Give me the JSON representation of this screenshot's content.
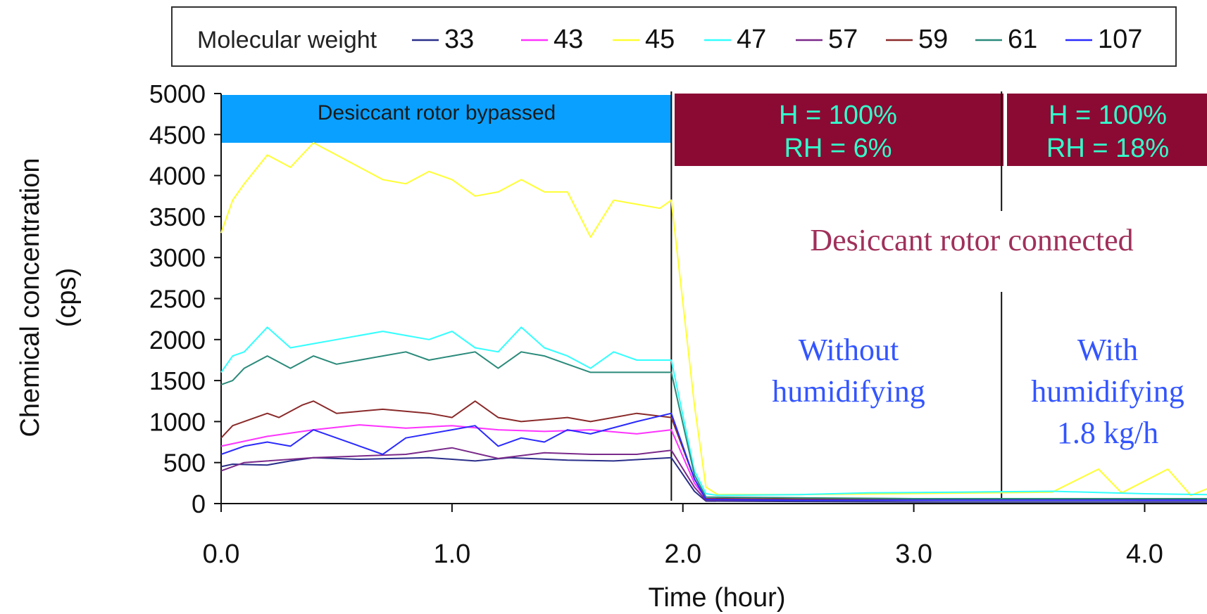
{
  "chart_data": {
    "type": "line",
    "xlabel": "Time (hour)",
    "ylabel": [
      "Chemical concentration",
      "(cps)"
    ],
    "xlim": [
      0,
      4.27
    ],
    "ylim": [
      0,
      5000
    ],
    "x_ticks": [
      0,
      1,
      2,
      3,
      4
    ],
    "x_tick_labels": [
      "0.0",
      "1.0",
      "2.0",
      "3.0",
      "4.0"
    ],
    "y_ticks": [
      0,
      500,
      1000,
      1500,
      2000,
      2500,
      3000,
      3500,
      4000,
      4500,
      5000
    ],
    "y_tick_labels": [
      "0",
      "500",
      "1000",
      "1500",
      "2000",
      "2500",
      "3000",
      "3500",
      "4000",
      "4500",
      "5000"
    ],
    "legend": {
      "title": "Molecular weight",
      "placement": "top"
    },
    "series": [
      {
        "name": "33",
        "color": "#2a2f8a",
        "x": [
          0.0,
          0.05,
          0.2,
          0.3,
          0.4,
          0.6,
          0.9,
          1.1,
          1.25,
          1.5,
          1.7,
          1.95,
          2.05,
          2.1,
          2.5,
          3.0,
          3.5,
          4.0,
          4.27
        ],
        "y": [
          450,
          480,
          470,
          520,
          560,
          540,
          560,
          520,
          560,
          530,
          520,
          560,
          150,
          30,
          25,
          20,
          20,
          20,
          20
        ]
      },
      {
        "name": "43",
        "color": "#ff33ff",
        "x": [
          0.0,
          0.1,
          0.2,
          0.4,
          0.6,
          0.8,
          1.0,
          1.2,
          1.4,
          1.6,
          1.8,
          1.95,
          2.05,
          2.1,
          2.5,
          3.0,
          3.5,
          4.0,
          4.27
        ],
        "y": [
          700,
          760,
          820,
          900,
          960,
          920,
          950,
          900,
          880,
          900,
          850,
          900,
          250,
          60,
          50,
          45,
          50,
          45,
          50
        ]
      },
      {
        "name": "45",
        "color": "#ffff33",
        "x": [
          0.0,
          0.05,
          0.1,
          0.2,
          0.3,
          0.4,
          0.5,
          0.7,
          0.8,
          0.9,
          1.0,
          1.1,
          1.2,
          1.3,
          1.4,
          1.5,
          1.6,
          1.7,
          1.8,
          1.9,
          1.95,
          2.05,
          2.1,
          2.15,
          2.5,
          2.9,
          3.3,
          3.6,
          3.8,
          3.9,
          4.1,
          4.2,
          4.27
        ],
        "y": [
          3300,
          3700,
          3900,
          4250,
          4100,
          4400,
          4250,
          3950,
          3900,
          4050,
          3950,
          3750,
          3800,
          3950,
          3800,
          3800,
          3250,
          3700,
          3650,
          3600,
          3700,
          1200,
          200,
          110,
          110,
          120,
          130,
          140,
          420,
          130,
          420,
          100,
          180
        ]
      },
      {
        "name": "47",
        "color": "#33ffff",
        "x": [
          0.0,
          0.05,
          0.1,
          0.2,
          0.3,
          0.4,
          0.5,
          0.7,
          0.8,
          0.9,
          1.0,
          1.1,
          1.2,
          1.3,
          1.4,
          1.5,
          1.6,
          1.7,
          1.8,
          1.95,
          2.05,
          2.1,
          2.15,
          2.5,
          2.8,
          3.2,
          3.6,
          4.0,
          4.27
        ],
        "y": [
          1600,
          1800,
          1850,
          2150,
          1900,
          1950,
          2000,
          2100,
          2050,
          2000,
          2100,
          1900,
          1850,
          2150,
          1900,
          1800,
          1650,
          1850,
          1750,
          1750,
          400,
          120,
          100,
          110,
          130,
          140,
          150,
          120,
          110
        ]
      },
      {
        "name": "57",
        "color": "#7a2a8a",
        "x": [
          0.0,
          0.1,
          0.2,
          0.4,
          0.6,
          0.8,
          1.0,
          1.2,
          1.4,
          1.6,
          1.8,
          1.95,
          2.05,
          2.1,
          2.5,
          3.0,
          3.5,
          4.0,
          4.27
        ],
        "y": [
          400,
          500,
          520,
          560,
          580,
          600,
          680,
          550,
          620,
          600,
          600,
          650,
          200,
          40,
          40,
          40,
          50,
          40,
          40
        ]
      },
      {
        "name": "59",
        "color": "#8a2a2a",
        "x": [
          0.0,
          0.05,
          0.2,
          0.25,
          0.35,
          0.4,
          0.5,
          0.7,
          0.9,
          1.0,
          1.1,
          1.2,
          1.3,
          1.5,
          1.6,
          1.8,
          1.95,
          2.05,
          2.1,
          2.5,
          3.0,
          3.5,
          4.0,
          4.27
        ],
        "y": [
          800,
          950,
          1100,
          1050,
          1200,
          1250,
          1100,
          1150,
          1100,
          1050,
          1250,
          1050,
          1000,
          1050,
          1000,
          1100,
          1050,
          300,
          60,
          55,
          50,
          55,
          50,
          50
        ]
      },
      {
        "name": "61",
        "color": "#2a8a7a",
        "x": [
          0.0,
          0.05,
          0.1,
          0.2,
          0.3,
          0.4,
          0.5,
          0.7,
          0.8,
          0.9,
          1.0,
          1.1,
          1.2,
          1.3,
          1.4,
          1.5,
          1.6,
          1.8,
          1.95,
          2.05,
          2.1,
          2.5,
          3.0,
          3.5,
          4.0,
          4.27
        ],
        "y": [
          1450,
          1500,
          1650,
          1800,
          1650,
          1800,
          1700,
          1800,
          1850,
          1750,
          1800,
          1850,
          1650,
          1850,
          1800,
          1700,
          1600,
          1600,
          1600,
          350,
          80,
          70,
          60,
          60,
          60,
          60
        ]
      },
      {
        "name": "107",
        "color": "#2a2aff",
        "x": [
          0.0,
          0.1,
          0.2,
          0.3,
          0.4,
          0.5,
          0.7,
          0.8,
          1.0,
          1.1,
          1.2,
          1.3,
          1.4,
          1.5,
          1.6,
          1.8,
          1.95,
          2.05,
          2.1,
          2.5,
          3.0,
          3.5,
          4.0,
          4.27
        ],
        "y": [
          600,
          700,
          750,
          700,
          900,
          800,
          600,
          800,
          900,
          950,
          700,
          800,
          750,
          900,
          850,
          1000,
          1100,
          300,
          50,
          40,
          40,
          40,
          40,
          40
        ]
      }
    ],
    "dividers_x": [
      1.95,
      3.38
    ],
    "annotations": {
      "bypassed": {
        "text": "Desiccant rotor bypassed",
        "color": "#0aa0ff"
      },
      "phase1": {
        "lines": [
          "H = 100%",
          "RH = 6%"
        ],
        "bg": "#8b0a33",
        "color": "#33ffcc"
      },
      "phase2": {
        "lines": [
          "H = 100%",
          "RH = 18%"
        ],
        "bg": "#8b0a33",
        "color": "#33ffcc"
      },
      "connected": {
        "text": "Desiccant rotor connected",
        "color": "#a0305a"
      },
      "without": {
        "lines": [
          "Without",
          "humidifying"
        ],
        "color": "#3355ff"
      },
      "with": {
        "lines": [
          "With",
          "humidifying",
          "1.8 kg/h"
        ],
        "color": "#3355ff"
      }
    }
  }
}
